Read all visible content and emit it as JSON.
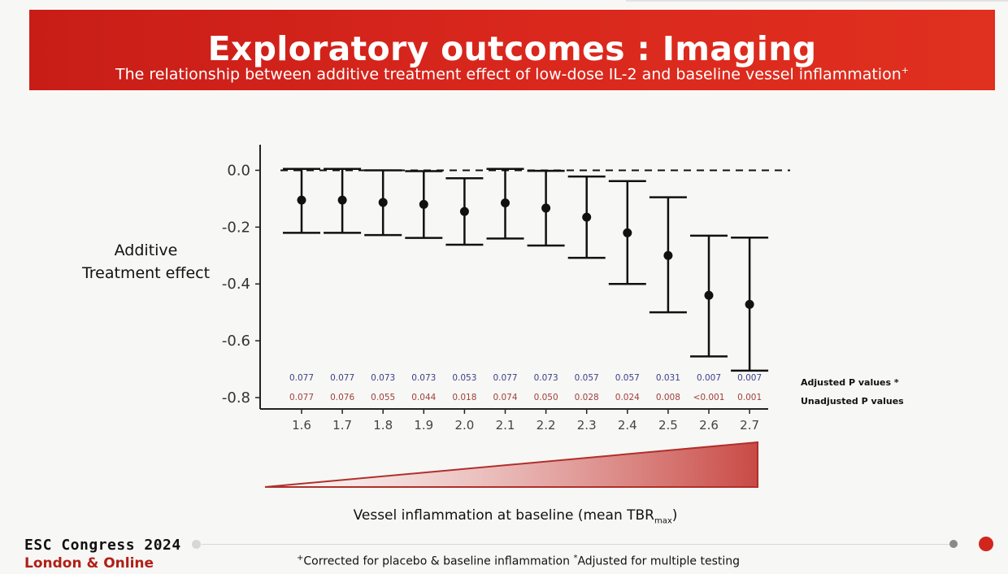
{
  "header": {
    "title": "Exploratory outcomes : Imaging",
    "subtitle": "The relationship between additive treatment effect of low-dose IL-2 and baseline vessel inflammation",
    "subtitle_mark": "+"
  },
  "chart_data": {
    "type": "errorbar",
    "categories": [
      "1.6",
      "1.7",
      "1.8",
      "1.9",
      "2.0",
      "2.1",
      "2.2",
      "2.3",
      "2.4",
      "2.5",
      "2.6",
      "2.7"
    ],
    "series": [
      {
        "values": [
          -0.105,
          -0.105,
          -0.113,
          -0.12,
          -0.145,
          -0.115,
          -0.133,
          -0.165,
          -0.22,
          -0.3,
          -0.44,
          -0.472
        ],
        "lower": [
          -0.22,
          -0.22,
          -0.228,
          -0.238,
          -0.262,
          -0.24,
          -0.265,
          -0.308,
          -0.4,
          -0.5,
          -0.655,
          -0.705
        ],
        "upper": [
          0.005,
          0.005,
          0.0,
          -0.003,
          -0.028,
          0.005,
          -0.002,
          -0.022,
          -0.038,
          -0.095,
          -0.23,
          -0.237
        ]
      }
    ],
    "ylabel": "Additive Treatment effect",
    "xlabel": "Vessel inflammation at baseline (mean TBR",
    "xlabel_sub": "max",
    "xlabel_end": ")",
    "ylim": [
      -0.84,
      0.09
    ],
    "yticks": [
      "0.0",
      "-0.2",
      "-0.4",
      "-0.6",
      "-0.8"
    ],
    "ytick_values": [
      0.0,
      -0.2,
      -0.4,
      -0.6,
      -0.8
    ],
    "reference_line": 0.0,
    "grid": false,
    "adjusted_p": [
      "0.077",
      "0.077",
      "0.073",
      "0.073",
      "0.053",
      "0.077",
      "0.073",
      "0.057",
      "0.057",
      "0.031",
      "0.007",
      "0.007"
    ],
    "unadjusted_p": [
      "0.077",
      "0.076",
      "0.055",
      "0.044",
      "0.018",
      "0.074",
      "0.050",
      "0.028",
      "0.024",
      "0.008",
      "<0.001",
      "0.001"
    ],
    "adjusted_label": "Adjusted P  values *",
    "unadjusted_label": "Unadjusted P values"
  },
  "colors": {
    "header_red": "#d9271d",
    "adjusted_p": "#3c3f8a",
    "unadjusted_p": "#a0403a",
    "wedge": "#c94a45",
    "brand_red": "#b01f17"
  },
  "footer": {
    "brand_line1": "ESC Congress 2024",
    "brand_line2": "London & Online",
    "footnote_mark1": "+",
    "footnote_part1": "Corrected for placebo & baseline inflammation ",
    "footnote_mark2": "*",
    "footnote_part2": "Adjusted for multiple testing"
  }
}
